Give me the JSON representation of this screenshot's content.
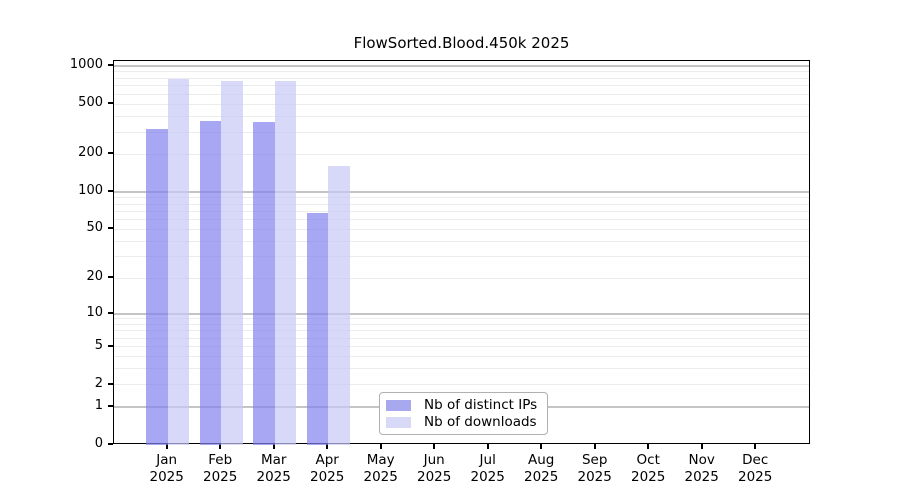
{
  "title": "FlowSorted.Blood.450k 2025",
  "legend": {
    "items": [
      {
        "label": "Nb of distinct IPs",
        "color": "#a8a8ef"
      },
      {
        "label": "Nb of downloads",
        "color": "#d8d8f7"
      }
    ]
  },
  "colors": {
    "bar_ips": "rgba(130,130,240,0.7)",
    "bar_downloads": "rgba(200,200,247,0.7)",
    "grid_minor": "#ececec",
    "grid_major": "#c4c4c4",
    "axis": "#000000"
  },
  "chart_data": {
    "type": "bar",
    "title": "FlowSorted.Blood.450k 2025",
    "categories": [
      "Jan",
      "Feb",
      "Mar",
      "Apr",
      "May",
      "Jun",
      "Jul",
      "Aug",
      "Sep",
      "Oct",
      "Nov",
      "Dec"
    ],
    "year": "2025",
    "series": [
      {
        "name": "Nb of distinct IPs",
        "values": [
          320,
          365,
          360,
          68,
          null,
          null,
          null,
          null,
          null,
          null,
          null,
          null
        ]
      },
      {
        "name": "Nb of downloads",
        "values": [
          798,
          760,
          770,
          160,
          null,
          null,
          null,
          null,
          null,
          null,
          null,
          null
        ]
      }
    ],
    "yscale": "log1p",
    "ylim": [
      0,
      1100
    ],
    "yticks": [
      1000,
      500,
      200,
      100,
      50,
      20,
      10,
      5,
      2,
      1,
      0
    ],
    "grid_minor_values": [
      2,
      3,
      4,
      5,
      6,
      7,
      8,
      9,
      20,
      30,
      40,
      50,
      60,
      70,
      80,
      90,
      200,
      300,
      400,
      500,
      600,
      700,
      800,
      900
    ],
    "grid_major_values": [
      1,
      10,
      100,
      1000
    ],
    "legend_position": "inside-bottom-center",
    "xlabel": "",
    "ylabel": ""
  }
}
